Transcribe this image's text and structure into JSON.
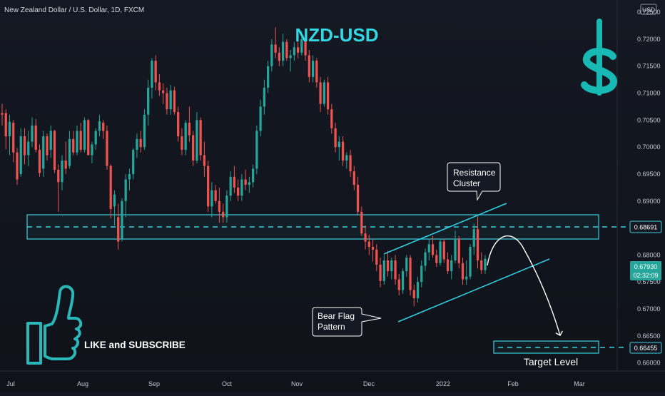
{
  "header": {
    "symbol_title": "New Zealand Dollar / U.S. Dollar, 1D, FXCM",
    "currency_button": "USD"
  },
  "chart_data": {
    "type": "candlestick",
    "title": "NZD-USD",
    "y_axis": {
      "ticks": [
        "0.72500",
        "0.72000",
        "0.71500",
        "0.71000",
        "0.70500",
        "0.70000",
        "0.69500",
        "0.69000",
        "0.68500",
        "0.68000",
        "0.67500",
        "0.67000",
        "0.66500",
        "0.66000"
      ],
      "range": [
        0.6585,
        0.7262
      ]
    },
    "x_axis": {
      "ticks": [
        "Jul",
        "Aug",
        "Sep",
        "Oct",
        "Nov",
        "Dec",
        "2022",
        "Feb",
        "Mar"
      ]
    },
    "resistance_level": "0.68691",
    "current_price": "0.67930",
    "countdown": "02:32:09",
    "target_price": "0.66455",
    "annotations": {
      "resistance": [
        "Resistance",
        "Cluster"
      ],
      "bear_flag": [
        "Bear Flag",
        "Pattern"
      ],
      "target": "Target Level",
      "cta": "LIKE and SUBSCRIBE"
    },
    "series_colors": {
      "up": "#26a69a",
      "down": "#ef5350",
      "zone": "#3fd0e0",
      "title": "#31d7e3"
    },
    "candles": [
      [
        0.7063,
        0.708,
        0.704,
        0.706
      ],
      [
        0.7063,
        0.707,
        0.6996,
        0.702
      ],
      [
        0.702,
        0.706,
        0.6985,
        0.7047
      ],
      [
        0.7045,
        0.705,
        0.6972,
        0.699
      ],
      [
        0.699,
        0.6998,
        0.693,
        0.694
      ],
      [
        0.695,
        0.7035,
        0.6945,
        0.702
      ],
      [
        0.702,
        0.7035,
        0.6968,
        0.6985
      ],
      [
        0.6985,
        0.703,
        0.6965,
        0.701
      ],
      [
        0.701,
        0.7055,
        0.7,
        0.704
      ],
      [
        0.704,
        0.7052,
        0.699,
        0.6995
      ],
      [
        0.6995,
        0.7005,
        0.6945,
        0.6952
      ],
      [
        0.696,
        0.703,
        0.6945,
        0.702
      ],
      [
        0.702,
        0.7025,
        0.6975,
        0.6985
      ],
      [
        0.6995,
        0.704,
        0.698,
        0.703
      ],
      [
        0.703,
        0.7032,
        0.6952,
        0.6958
      ],
      [
        0.6958,
        0.6968,
        0.688,
        0.6935
      ],
      [
        0.6935,
        0.6985,
        0.692,
        0.6975
      ],
      [
        0.6975,
        0.701,
        0.695,
        0.696
      ],
      [
        0.6965,
        0.703,
        0.696,
        0.7015
      ],
      [
        0.7015,
        0.703,
        0.6985,
        0.699
      ],
      [
        0.699,
        0.704,
        0.6985,
        0.703
      ],
      [
        0.703,
        0.7045,
        0.699,
        0.6995
      ],
      [
        0.6995,
        0.7055,
        0.699,
        0.705
      ],
      [
        0.705,
        0.7052,
        0.6985,
        0.6985
      ],
      [
        0.6985,
        0.701,
        0.697,
        0.7005
      ],
      [
        0.7005,
        0.7035,
        0.6995,
        0.703
      ],
      [
        0.703,
        0.706,
        0.702,
        0.7048
      ],
      [
        0.7045,
        0.705,
        0.7015,
        0.703
      ],
      [
        0.703,
        0.704,
        0.6958,
        0.6965
      ],
      [
        0.6965,
        0.6968,
        0.6868,
        0.6885
      ],
      [
        0.689,
        0.692,
        0.6855,
        0.6912
      ],
      [
        0.687,
        0.6895,
        0.681,
        0.6825
      ],
      [
        0.683,
        0.6905,
        0.6825,
        0.69
      ],
      [
        0.69,
        0.695,
        0.687,
        0.694
      ],
      [
        0.694,
        0.696,
        0.692,
        0.695
      ],
      [
        0.695,
        0.6998,
        0.694,
        0.6995
      ],
      [
        0.6995,
        0.7025,
        0.698,
        0.7015
      ],
      [
        0.7015,
        0.703,
        0.699,
        0.7
      ],
      [
        0.7,
        0.707,
        0.6995,
        0.706
      ],
      [
        0.706,
        0.7125,
        0.704,
        0.711
      ],
      [
        0.711,
        0.7165,
        0.709,
        0.716
      ],
      [
        0.716,
        0.717,
        0.7105,
        0.712
      ],
      [
        0.712,
        0.7135,
        0.7095,
        0.7105
      ],
      [
        0.7105,
        0.7118,
        0.708,
        0.71
      ],
      [
        0.71,
        0.711,
        0.706,
        0.707
      ],
      [
        0.707,
        0.7115,
        0.706,
        0.7105
      ],
      [
        0.7105,
        0.7112,
        0.706,
        0.7065
      ],
      [
        0.7065,
        0.7075,
        0.701,
        0.702
      ],
      [
        0.702,
        0.7035,
        0.6985,
        0.6995
      ],
      [
        0.6995,
        0.705,
        0.6985,
        0.7045
      ],
      [
        0.7045,
        0.7075,
        0.701,
        0.7022
      ],
      [
        0.7022,
        0.703,
        0.6965,
        0.6975
      ],
      [
        0.6975,
        0.7065,
        0.697,
        0.705
      ],
      [
        0.705,
        0.7055,
        0.6975,
        0.6985
      ],
      [
        0.6985,
        0.701,
        0.6945,
        0.6965
      ],
      [
        0.6965,
        0.6975,
        0.688,
        0.689
      ],
      [
        0.689,
        0.6935,
        0.687,
        0.692
      ],
      [
        0.692,
        0.693,
        0.6895,
        0.69
      ],
      [
        0.69,
        0.6925,
        0.686,
        0.688
      ],
      [
        0.688,
        0.6895,
        0.686,
        0.687
      ],
      [
        0.687,
        0.692,
        0.686,
        0.691
      ],
      [
        0.691,
        0.6955,
        0.69,
        0.6945
      ],
      [
        0.6945,
        0.6965,
        0.6915,
        0.6925
      ],
      [
        0.6925,
        0.694,
        0.69,
        0.691
      ],
      [
        0.691,
        0.695,
        0.69,
        0.694
      ],
      [
        0.694,
        0.6958,
        0.692,
        0.693
      ],
      [
        0.693,
        0.6945,
        0.6915,
        0.6935
      ],
      [
        0.6935,
        0.6968,
        0.6925,
        0.696
      ],
      [
        0.696,
        0.704,
        0.695,
        0.703
      ],
      [
        0.703,
        0.7088,
        0.702,
        0.7075
      ],
      [
        0.7075,
        0.7125,
        0.706,
        0.711
      ],
      [
        0.711,
        0.716,
        0.71,
        0.715
      ],
      [
        0.715,
        0.72,
        0.714,
        0.719
      ],
      [
        0.719,
        0.7222,
        0.7165,
        0.7175
      ],
      [
        0.7175,
        0.7185,
        0.715,
        0.716
      ],
      [
        0.716,
        0.721,
        0.715,
        0.7195
      ],
      [
        0.7195,
        0.72,
        0.716,
        0.7165
      ],
      [
        0.7165,
        0.718,
        0.714,
        0.717
      ],
      [
        0.717,
        0.7195,
        0.716,
        0.7185
      ],
      [
        0.7185,
        0.72,
        0.7165,
        0.7175
      ],
      [
        0.7175,
        0.7215,
        0.717,
        0.72
      ],
      [
        0.72,
        0.721,
        0.716,
        0.717
      ],
      [
        0.717,
        0.718,
        0.712,
        0.713
      ],
      [
        0.713,
        0.717,
        0.712,
        0.716
      ],
      [
        0.716,
        0.7165,
        0.711,
        0.712
      ],
      [
        0.712,
        0.713,
        0.7065,
        0.708
      ],
      [
        0.708,
        0.7125,
        0.7075,
        0.712
      ],
      [
        0.712,
        0.713,
        0.706,
        0.707
      ],
      [
        0.707,
        0.708,
        0.7025,
        0.7035
      ],
      [
        0.7035,
        0.7045,
        0.699,
        0.7
      ],
      [
        0.7,
        0.702,
        0.6975,
        0.701
      ],
      [
        0.701,
        0.702,
        0.6965,
        0.6975
      ],
      [
        0.6975,
        0.699,
        0.696,
        0.6985
      ],
      [
        0.6985,
        0.6995,
        0.6945,
        0.6955
      ],
      [
        0.6955,
        0.6965,
        0.692,
        0.693
      ],
      [
        0.693,
        0.6945,
        0.6875,
        0.688
      ],
      [
        0.688,
        0.689,
        0.6835,
        0.684
      ],
      [
        0.684,
        0.6855,
        0.681,
        0.6825
      ],
      [
        0.6825,
        0.6838,
        0.68,
        0.6815
      ],
      [
        0.6815,
        0.683,
        0.6788,
        0.681
      ],
      [
        0.681,
        0.682,
        0.677,
        0.6782
      ],
      [
        0.6782,
        0.6795,
        0.674,
        0.6752
      ],
      [
        0.6752,
        0.68,
        0.6745,
        0.679
      ],
      [
        0.679,
        0.6808,
        0.676,
        0.677
      ],
      [
        0.677,
        0.6795,
        0.6755,
        0.679
      ],
      [
        0.679,
        0.68,
        0.6745,
        0.6755
      ],
      [
        0.6755,
        0.6765,
        0.6725,
        0.6735
      ],
      [
        0.6735,
        0.6775,
        0.6728,
        0.677
      ],
      [
        0.677,
        0.68,
        0.676,
        0.6795
      ],
      [
        0.6795,
        0.68,
        0.6725,
        0.6735
      ],
      [
        0.6735,
        0.6745,
        0.6705,
        0.672
      ],
      [
        0.672,
        0.676,
        0.6712,
        0.675
      ],
      [
        0.675,
        0.679,
        0.674,
        0.678
      ],
      [
        0.678,
        0.6812,
        0.677,
        0.6805
      ],
      [
        0.6805,
        0.683,
        0.679,
        0.682
      ],
      [
        0.682,
        0.6835,
        0.6795,
        0.68
      ],
      [
        0.68,
        0.681,
        0.6778,
        0.6785
      ],
      [
        0.6785,
        0.683,
        0.678,
        0.6825
      ],
      [
        0.6825,
        0.683,
        0.6785,
        0.6792
      ],
      [
        0.6792,
        0.6805,
        0.6765,
        0.677
      ],
      [
        0.677,
        0.68,
        0.6755,
        0.679
      ],
      [
        0.679,
        0.6845,
        0.6785,
        0.683
      ],
      [
        0.683,
        0.6835,
        0.6775,
        0.6785
      ],
      [
        0.6785,
        0.6795,
        0.6745,
        0.6755
      ],
      [
        0.6755,
        0.679,
        0.6745,
        0.676
      ],
      [
        0.676,
        0.682,
        0.6755,
        0.6815
      ],
      [
        0.6815,
        0.6858,
        0.68,
        0.6848
      ],
      [
        0.6848,
        0.6872,
        0.6775,
        0.679
      ],
      [
        0.679,
        0.6805,
        0.6765,
        0.6772
      ],
      [
        0.6772,
        0.68,
        0.6765,
        0.6793
      ]
    ]
  }
}
